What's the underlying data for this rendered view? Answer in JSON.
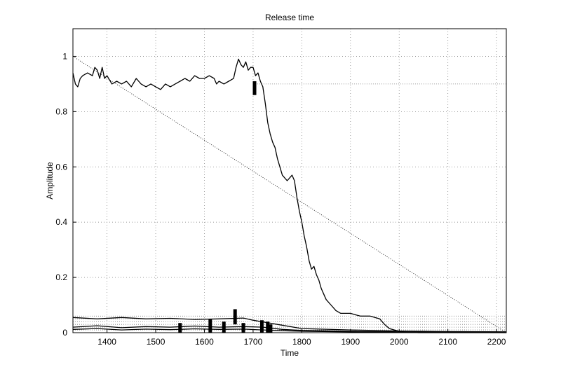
{
  "chart_data": {
    "type": "line",
    "title": "Release time",
    "xlabel": "Time",
    "ylabel": "Amplitude",
    "xlim": [
      1330,
      2220
    ],
    "ylim": [
      0,
      1.1
    ],
    "xticks": [
      1400,
      1500,
      1600,
      1700,
      1800,
      1900,
      2000,
      2100,
      2200
    ],
    "yticks": [
      0,
      0.2,
      0.4,
      0.6,
      0.8,
      1
    ],
    "ytick_labels": [
      "0",
      "0.2",
      "0.4",
      "0.6",
      "0.8",
      "1"
    ],
    "grid": true,
    "series": [
      {
        "style": "solid",
        "x": [
          1330,
          1335,
          1340,
          1345,
          1350,
          1360,
          1370,
          1375,
          1380,
          1385,
          1390,
          1395,
          1400,
          1410,
          1420,
          1430,
          1440,
          1450,
          1460,
          1470,
          1480,
          1490,
          1500,
          1510,
          1520,
          1530,
          1540,
          1550,
          1560,
          1570,
          1580,
          1590,
          1600,
          1610,
          1620,
          1625,
          1630,
          1640,
          1650,
          1660,
          1665,
          1670,
          1675,
          1680,
          1685,
          1690,
          1695,
          1700,
          1705,
          1710,
          1715,
          1720,
          1725,
          1730,
          1735,
          1740,
          1745,
          1750,
          1760,
          1770,
          1775,
          1780,
          1785,
          1790,
          1795,
          1800,
          1805,
          1810,
          1815,
          1820,
          1825,
          1830,
          1835,
          1840,
          1845,
          1850,
          1860,
          1870,
          1880,
          1890,
          1900,
          1910,
          1920,
          1930,
          1940,
          1950,
          1960,
          1970,
          1980,
          1990,
          2000,
          2010,
          2020,
          2030,
          2040,
          2060,
          2080,
          2100,
          2150,
          2200,
          2220
        ],
        "y": [
          0.94,
          0.9,
          0.89,
          0.92,
          0.93,
          0.94,
          0.93,
          0.96,
          0.95,
          0.92,
          0.96,
          0.92,
          0.93,
          0.9,
          0.91,
          0.9,
          0.91,
          0.89,
          0.92,
          0.9,
          0.89,
          0.9,
          0.89,
          0.88,
          0.9,
          0.89,
          0.9,
          0.91,
          0.92,
          0.91,
          0.93,
          0.92,
          0.92,
          0.93,
          0.92,
          0.9,
          0.91,
          0.9,
          0.91,
          0.92,
          0.96,
          0.99,
          0.97,
          0.96,
          0.98,
          0.95,
          0.96,
          0.96,
          0.93,
          0.94,
          0.91,
          0.89,
          0.83,
          0.76,
          0.72,
          0.69,
          0.67,
          0.63,
          0.57,
          0.55,
          0.56,
          0.57,
          0.55,
          0.49,
          0.44,
          0.4,
          0.35,
          0.31,
          0.26,
          0.23,
          0.24,
          0.21,
          0.19,
          0.16,
          0.14,
          0.12,
          0.1,
          0.08,
          0.07,
          0.07,
          0.07,
          0.065,
          0.06,
          0.06,
          0.06,
          0.055,
          0.05,
          0.03,
          0.015,
          0.01,
          0.005,
          0.003,
          0.002,
          0.001,
          0,
          0,
          0,
          0,
          0,
          0,
          0
        ]
      },
      {
        "style": "solid",
        "x": [
          1330,
          1380,
          1430,
          1480,
          1530,
          1580,
          1630,
          1680,
          1700,
          1750,
          1800,
          1900,
          2000,
          2100,
          2220
        ],
        "y": [
          0.055,
          0.05,
          0.055,
          0.05,
          0.052,
          0.048,
          0.05,
          0.053,
          0.045,
          0.03,
          0.015,
          0.01,
          0.006,
          0.004,
          0.003
        ]
      },
      {
        "style": "solid",
        "x": [
          1330,
          1380,
          1430,
          1480,
          1530,
          1580,
          1630,
          1680,
          1720,
          1760,
          1800,
          1900,
          2000,
          2100,
          2220
        ],
        "y": [
          0.02,
          0.025,
          0.018,
          0.022,
          0.02,
          0.024,
          0.02,
          0.022,
          0.02,
          0.012,
          0.008,
          0.005,
          0.003,
          0.002,
          0.002
        ]
      },
      {
        "style": "solid",
        "x": [
          1330,
          1380,
          1430,
          1480,
          1530,
          1580,
          1630,
          1680,
          1720,
          1760,
          1800,
          1900,
          2000,
          2100,
          2220
        ],
        "y": [
          0.012,
          0.015,
          0.01,
          0.013,
          0.011,
          0.014,
          0.012,
          0.013,
          0.01,
          0.007,
          0.005,
          0.003,
          0.002,
          0.001,
          0.001
        ]
      },
      {
        "style": "dotted",
        "x": [
          1330,
          2220
        ],
        "y": [
          1.0,
          0.0
        ]
      }
    ],
    "reference_lines": [
      {
        "x": [
          1700,
          2220
        ],
        "y": [
          0.9,
          0.9
        ]
      },
      {
        "x": [
          1330,
          2220
        ],
        "y": [
          0.06,
          0.06
        ]
      },
      {
        "x": [
          1330,
          2220
        ],
        "y": [
          0.05,
          0.05
        ]
      },
      {
        "x": [
          1330,
          2220
        ],
        "y": [
          0.04,
          0.04
        ]
      },
      {
        "x": [
          1330,
          2220
        ],
        "y": [
          0.03,
          0.03
        ]
      },
      {
        "x": [
          1330,
          2220
        ],
        "y": [
          0.02,
          0.02
        ]
      },
      {
        "x": [
          1330,
          2220
        ],
        "y": [
          0.01,
          0.01
        ]
      }
    ],
    "markers": [
      {
        "x": 1703,
        "y0": 0.86,
        "y1": 0.91
      },
      {
        "x": 1663,
        "y0": 0.03,
        "y1": 0.085
      },
      {
        "x": 1612,
        "y0": 0.0,
        "y1": 0.05
      },
      {
        "x": 1550,
        "y0": 0.0,
        "y1": 0.035
      },
      {
        "x": 1640,
        "y0": 0.0,
        "y1": 0.04
      },
      {
        "x": 1680,
        "y0": 0.0,
        "y1": 0.035
      },
      {
        "x": 1718,
        "y0": 0.0,
        "y1": 0.045
      },
      {
        "x": 1730,
        "y0": 0.0,
        "y1": 0.04
      },
      {
        "x": 1736,
        "y0": 0.0,
        "y1": 0.03
      }
    ]
  }
}
